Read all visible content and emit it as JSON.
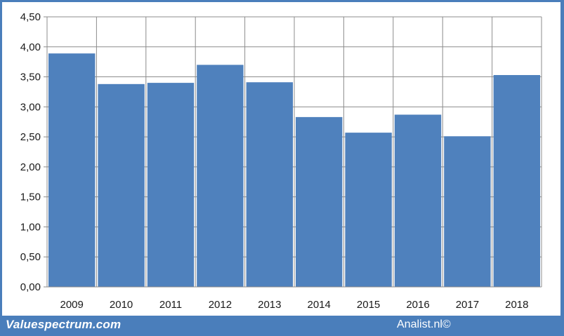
{
  "footer": {
    "brand": "Valuespectrum.com",
    "credit": "Analist.nl©"
  },
  "colors": {
    "bar": "#4f81bd",
    "frame": "#4a7ebb",
    "grid": "#8c8c8c"
  },
  "chart_data": {
    "type": "bar",
    "categories": [
      "2009",
      "2010",
      "2011",
      "2012",
      "2013",
      "2014",
      "2015",
      "2016",
      "2017",
      "2018"
    ],
    "values": [
      3.89,
      3.38,
      3.4,
      3.7,
      3.41,
      2.83,
      2.57,
      2.87,
      2.51,
      3.53
    ],
    "ylim": [
      0,
      4.5
    ],
    "yticks": [
      "0,00",
      "0,50",
      "1,00",
      "1,50",
      "2,00",
      "2,50",
      "3,00",
      "3,50",
      "4,00",
      "4,50"
    ],
    "grid": true,
    "legend": "none",
    "title": "",
    "xlabel": "",
    "ylabel": ""
  }
}
